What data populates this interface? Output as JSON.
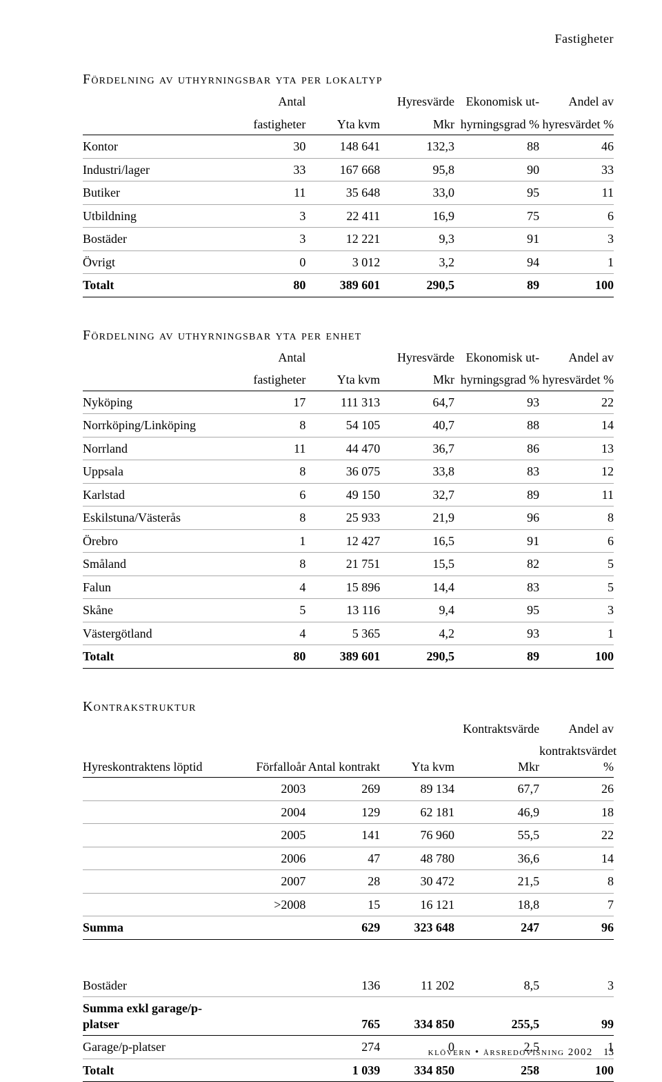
{
  "page_header": "Fastigheter",
  "footer": {
    "text": "klövern • årsredovisning 2002",
    "page": "13"
  },
  "table1": {
    "title": "Fördelning av uthyrningsbar yta per lokaltyp",
    "columns": [
      {
        "h1": "",
        "h2": ""
      },
      {
        "h1": "Antal",
        "h2": "fastigheter"
      },
      {
        "h1": "",
        "h2": "Yta kvm"
      },
      {
        "h1": "Hyresvärde",
        "h2": "Mkr"
      },
      {
        "h1": "Ekonomisk ut-",
        "h2": "hyrningsgrad %"
      },
      {
        "h1": "Andel av",
        "h2": "hyresvärdet %"
      }
    ],
    "rows": [
      [
        "Kontor",
        "30",
        "148 641",
        "132,3",
        "88",
        "46"
      ],
      [
        "Industri/lager",
        "33",
        "167 668",
        "95,8",
        "90",
        "33"
      ],
      [
        "Butiker",
        "11",
        "35 648",
        "33,0",
        "95",
        "11"
      ],
      [
        "Utbildning",
        "3",
        "22 411",
        "16,9",
        "75",
        "6"
      ],
      [
        "Bostäder",
        "3",
        "12 221",
        "9,3",
        "91",
        "3"
      ],
      [
        "Övrigt",
        "0",
        "3 012",
        "3,2",
        "94",
        "1"
      ]
    ],
    "total": [
      "Totalt",
      "80",
      "389 601",
      "290,5",
      "89",
      "100"
    ]
  },
  "table2": {
    "title": "Fördelning av uthyrningsbar yta per enhet",
    "columns": [
      {
        "h1": "",
        "h2": ""
      },
      {
        "h1": "Antal",
        "h2": "fastigheter"
      },
      {
        "h1": "",
        "h2": "Yta kvm"
      },
      {
        "h1": "Hyresvärde",
        "h2": "Mkr"
      },
      {
        "h1": "Ekonomisk ut-",
        "h2": "hyrningsgrad %"
      },
      {
        "h1": "Andel av",
        "h2": "hyresvärdet %"
      }
    ],
    "rows": [
      [
        "Nyköping",
        "17",
        "111 313",
        "64,7",
        "93",
        "22"
      ],
      [
        "Norrköping/Linköping",
        "8",
        "54 105",
        "40,7",
        "88",
        "14"
      ],
      [
        "Norrland",
        "11",
        "44 470",
        "36,7",
        "86",
        "13"
      ],
      [
        "Uppsala",
        "8",
        "36 075",
        "33,8",
        "83",
        "12"
      ],
      [
        "Karlstad",
        "6",
        "49 150",
        "32,7",
        "89",
        "11"
      ],
      [
        "Eskilstuna/Västerås",
        "8",
        "25 933",
        "21,9",
        "96",
        "8"
      ],
      [
        "Örebro",
        "1",
        "12 427",
        "16,5",
        "91",
        "6"
      ],
      [
        "Småland",
        "8",
        "21 751",
        "15,5",
        "82",
        "5"
      ],
      [
        "Falun",
        "4",
        "15 896",
        "14,4",
        "83",
        "5"
      ],
      [
        "Skåne",
        "5",
        "13 116",
        "9,4",
        "95",
        "3"
      ],
      [
        "Västergötland",
        "4",
        "5 365",
        "4,2",
        "93",
        "1"
      ]
    ],
    "total": [
      "Totalt",
      "80",
      "389 601",
      "290,5",
      "89",
      "100"
    ]
  },
  "table3": {
    "title": "Kontrakstruktur",
    "columns": [
      {
        "h1": "",
        "h2": "Hyreskontraktens löptid"
      },
      {
        "h1": "",
        "h2": "Förfalloår"
      },
      {
        "h1": "",
        "h2": "Antal kontrakt"
      },
      {
        "h1": "",
        "h2": "Yta kvm"
      },
      {
        "h1": "Kontraktsvärde",
        "h2": "Mkr"
      },
      {
        "h1": "Andel av",
        "h2": "kontraktsvärdet %"
      }
    ],
    "rows": [
      [
        "",
        "2003",
        "269",
        "89 134",
        "67,7",
        "26"
      ],
      [
        "",
        "2004",
        "129",
        "62 181",
        "46,9",
        "18"
      ],
      [
        "",
        "2005",
        "141",
        "76 960",
        "55,5",
        "22"
      ],
      [
        "",
        "2006",
        "47",
        "48 780",
        "36,6",
        "14"
      ],
      [
        "",
        "2007",
        "28",
        "30 472",
        "21,5",
        "8"
      ],
      [
        "",
        ">2008",
        "15",
        "16 121",
        "18,8",
        "7"
      ]
    ],
    "summa": [
      "Summa",
      "",
      "629",
      "323 648",
      "247",
      "96"
    ],
    "rows2": [
      [
        "Bostäder",
        "",
        "136",
        "11 202",
        "8,5",
        "3"
      ]
    ],
    "summa2": [
      "Summa exkl garage/p-platser",
      "",
      "765",
      "334 850",
      "255,5",
      "99"
    ],
    "rows3": [
      [
        "Garage/p-platser",
        "",
        "274",
        "0",
        "2,5",
        "1"
      ]
    ],
    "total": [
      "Totalt",
      "",
      "1 039",
      "334 850",
      "258",
      "100"
    ]
  }
}
